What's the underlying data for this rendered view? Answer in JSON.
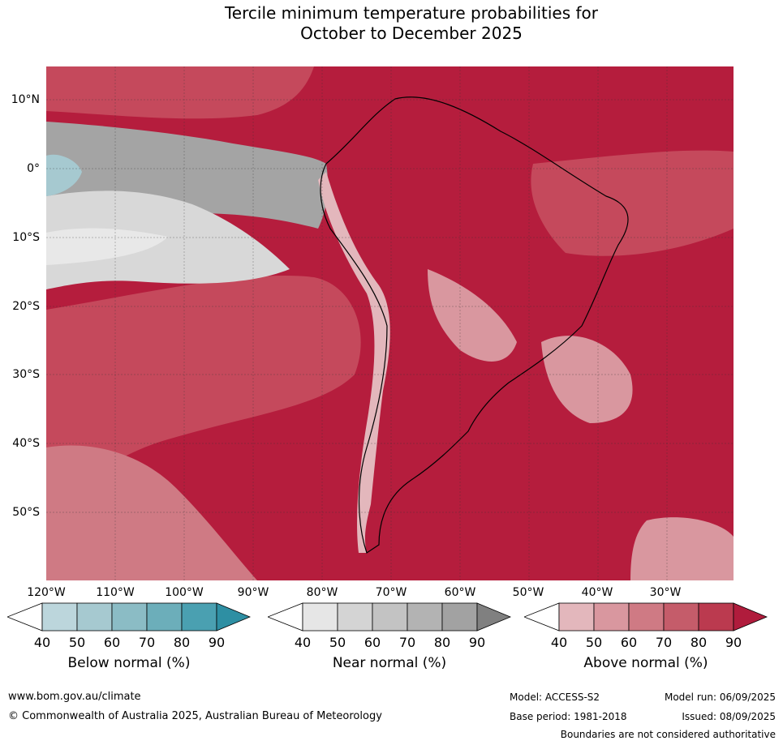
{
  "title_line1": "Tercile minimum temperature probabilities for",
  "title_line2": "October to December 2025",
  "lat_labels": [
    "10°N",
    "0°",
    "10°S",
    "20°S",
    "30°S",
    "40°S",
    "50°S"
  ],
  "lon_labels": [
    "120°W",
    "110°W",
    "100°W",
    "90°W",
    "80°W",
    "70°W",
    "60°W",
    "50°W",
    "40°W",
    "30°W"
  ],
  "colorbars": [
    {
      "label": "Below normal (%)",
      "ticks": [
        "40",
        "50",
        "60",
        "70",
        "80",
        "90"
      ],
      "colors": [
        "#ffffff",
        "#bcd6dc",
        "#a6c9d0",
        "#8bbcc5",
        "#6caeba",
        "#4aa0b1",
        "#2e8fa3"
      ]
    },
    {
      "label": "Near normal (%)",
      "ticks": [
        "40",
        "50",
        "60",
        "70",
        "80",
        "90"
      ],
      "colors": [
        "#ffffff",
        "#e6e6e6",
        "#d4d4d4",
        "#c3c3c3",
        "#b3b3b3",
        "#a2a2a2",
        "#808080"
      ]
    },
    {
      "label": "Above normal (%)",
      "ticks": [
        "40",
        "50",
        "60",
        "70",
        "80",
        "90"
      ],
      "colors": [
        "#ffffff",
        "#e3b7bc",
        "#d9979f",
        "#cf7a84",
        "#c55c6a",
        "#bb3a4f",
        "#b01c3c"
      ]
    }
  ],
  "footer": {
    "website": "www.bom.gov.au/climate",
    "copyright": "© Commonwealth of Australia 2025, Australian Bureau of Meteorology",
    "model": "Model: ACCESS-S2",
    "base_period": "Base period: 1981-2018",
    "model_run": "Model run: 06/09/2025",
    "issued": "Issued: 08/09/2025",
    "disclaimer": "Boundaries are not considered authoritative"
  }
}
